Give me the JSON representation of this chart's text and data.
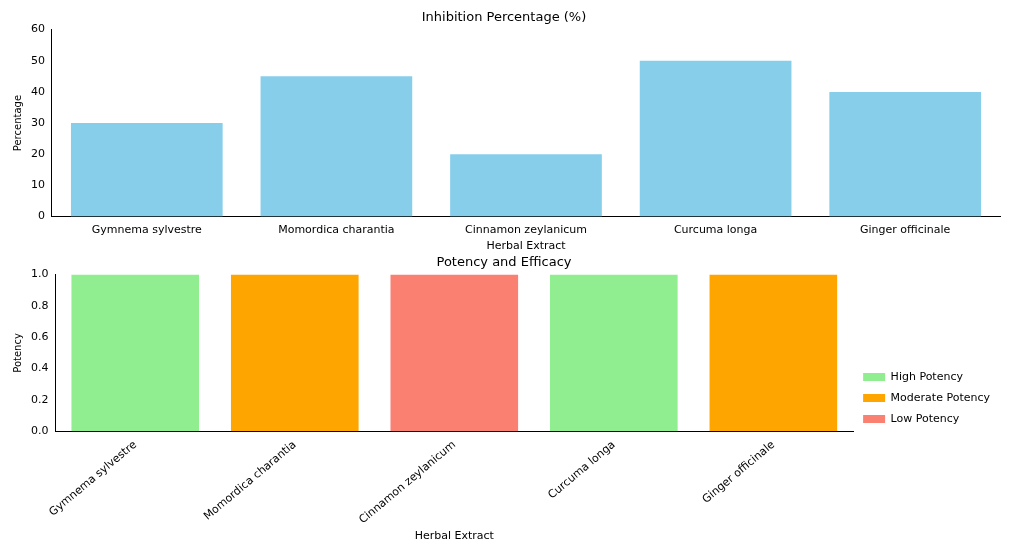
{
  "chart_data": [
    {
      "type": "bar",
      "title": "Inhibition Percentage (%)",
      "xlabel": "Herbal Extract",
      "ylabel": "Percentage",
      "categories": [
        "Gymnema sylvestre",
        "Momordica charantia",
        "Cinnamon zeylanicum",
        "Curcuma longa",
        "Ginger officinale"
      ],
      "values": [
        30,
        45,
        20,
        50,
        40
      ],
      "color": "#87ceeb",
      "ylim": [
        0,
        60
      ],
      "yticks": [
        0,
        10,
        20,
        30,
        40,
        50,
        60
      ],
      "grid": false,
      "legend": false
    },
    {
      "type": "bar",
      "title": "Potency and Efficacy",
      "xlabel": "Herbal Extract",
      "ylabel": "Potency",
      "categories": [
        "Gymnema sylvestre",
        "Momordica charantia",
        "Cinnamon zeylanicum",
        "Curcuma longa",
        "Ginger officinale"
      ],
      "stacked": true,
      "series": [
        {
          "name": "High Potency",
          "color": "#90ee90",
          "values": [
            1,
            null,
            null,
            1,
            null
          ]
        },
        {
          "name": "Moderate Potency",
          "color": "#ffa500",
          "values": [
            null,
            1,
            null,
            null,
            1
          ]
        },
        {
          "name": "Low Potency",
          "color": "#fa8072",
          "values": [
            null,
            null,
            1,
            null,
            null
          ]
        }
      ],
      "ylim": [
        0,
        1
      ],
      "yticks": [
        {
          "value": 0,
          "label": "0.0"
        },
        {
          "value": 0.2,
          "label": "0.2"
        },
        {
          "value": 0.4,
          "label": "0.4"
        },
        {
          "value": 0.6,
          "label": "0.6"
        },
        {
          "value": 0.8,
          "label": "0.8"
        },
        {
          "value": 1,
          "label": "1.0"
        }
      ],
      "grid": false,
      "legend": "right"
    }
  ]
}
